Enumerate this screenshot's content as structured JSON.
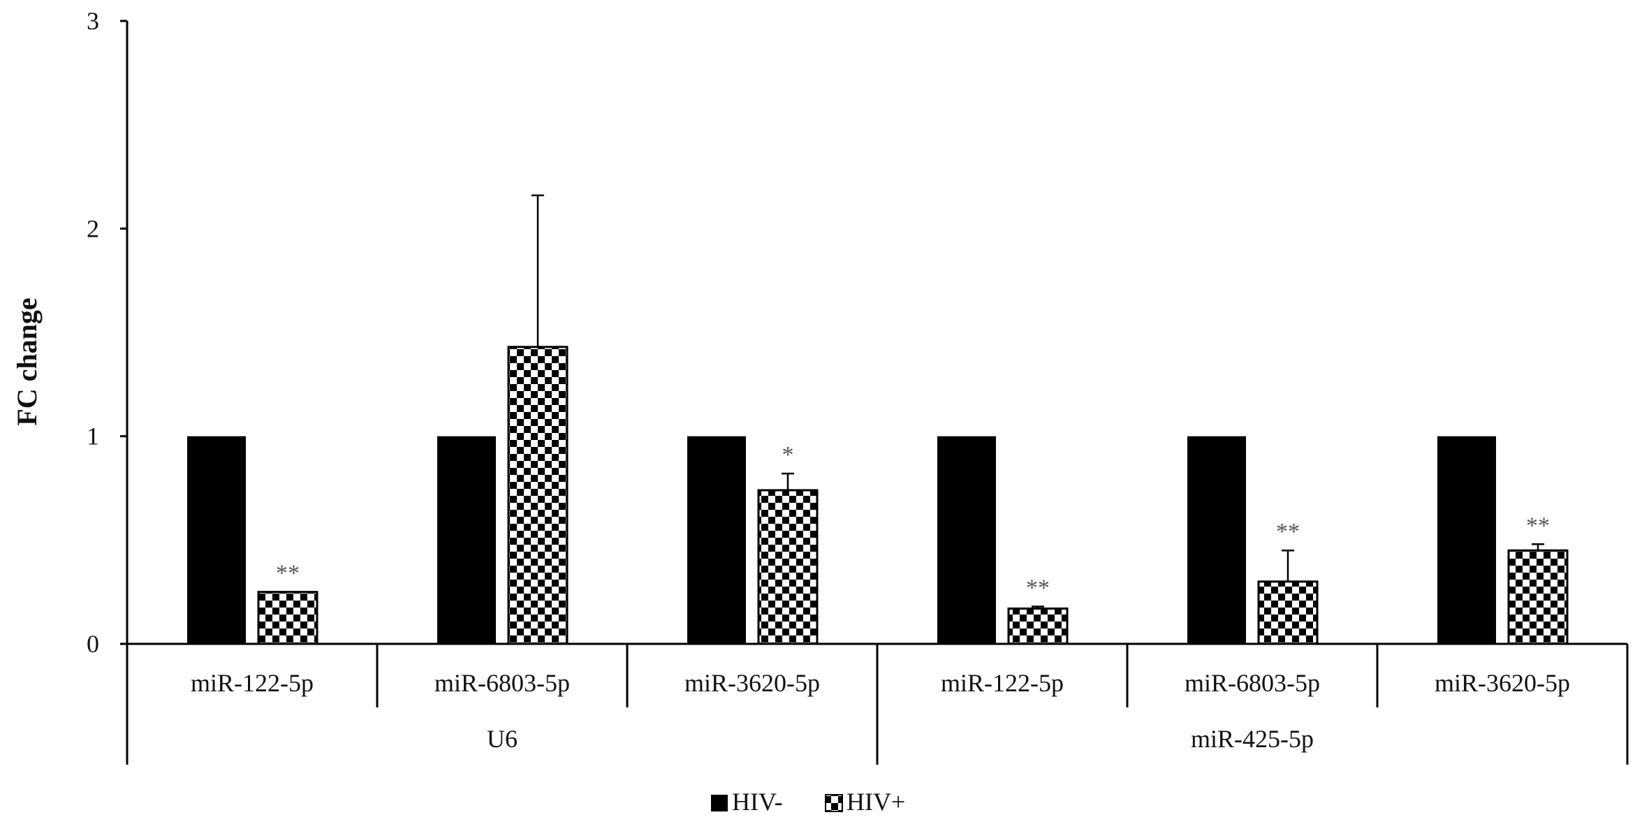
{
  "chart_data": {
    "type": "bar",
    "ylabel": "FC change",
    "xlabel": "",
    "ylim": [
      0,
      3
    ],
    "yticks": [
      0,
      1,
      2,
      3
    ],
    "grid": false,
    "legend_position": "bottom-center",
    "groups": [
      {
        "label": "U6",
        "categories": [
          "miR-122-5p",
          "miR-6803-5p",
          "miR-3620-5p"
        ]
      },
      {
        "label": "miR-425-5p",
        "categories": [
          "miR-122-5p",
          "miR-6803-5p",
          "miR-3620-5p"
        ]
      }
    ],
    "categories": [
      "miR-122-5p",
      "miR-6803-5p",
      "miR-3620-5p",
      "miR-122-5p",
      "miR-6803-5p",
      "miR-3620-5p"
    ],
    "series": [
      {
        "name": "HIV-",
        "color": "#000000",
        "pattern": "solid",
        "values": [
          1,
          1,
          1,
          1,
          1,
          1
        ]
      },
      {
        "name": "HIV+",
        "color": "#000000",
        "pattern": "checkerboard",
        "values": [
          0.25,
          1.43,
          0.74,
          0.17,
          0.3,
          0.45
        ],
        "error_upper": [
          0.25,
          2.16,
          0.82,
          0.18,
          0.45,
          0.48
        ]
      }
    ],
    "significance": [
      "**",
      "",
      "*",
      "**",
      "**",
      "**"
    ]
  }
}
